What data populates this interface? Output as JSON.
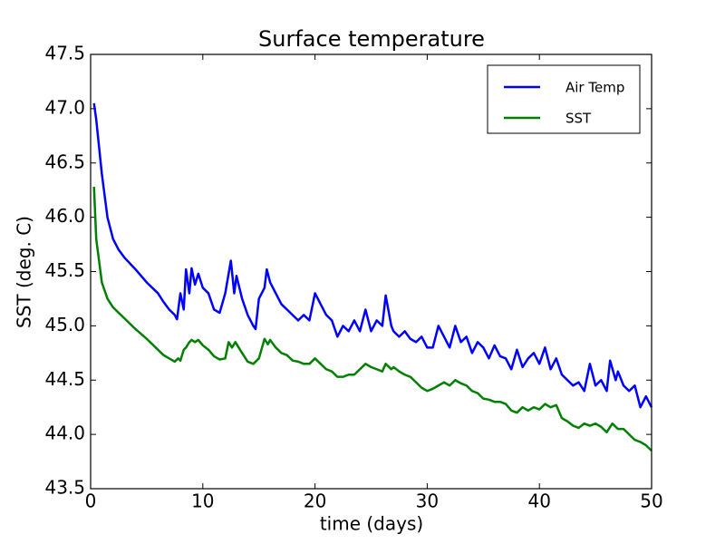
{
  "chart_data": {
    "type": "line",
    "title": "Surface temperature",
    "xlabel": "time (days)",
    "ylabel": "SST (deg. C)",
    "xlim": [
      0,
      50
    ],
    "xticks": [
      0,
      10,
      20,
      30,
      40,
      50
    ],
    "ylim": [
      43.5,
      47.5
    ],
    "yticks": [
      43.5,
      {
        "value": 44,
        "label": "44.0"
      },
      44.5,
      {
        "value": 45,
        "label": "45.0"
      },
      45.5,
      {
        "value": 46,
        "label": "46.0"
      },
      46.5,
      {
        "value": 47,
        "label": "47.0"
      },
      47.5
    ],
    "legend": "upper right",
    "grid": false,
    "series": [
      {
        "name": "Air Temp",
        "color": "#0000ff",
        "x": [
          0.3,
          0.5,
          1,
          1.5,
          2,
          2.5,
          3,
          4,
          5,
          6,
          6.5,
          7,
          7.5,
          7.7,
          8,
          8.3,
          8.5,
          8.8,
          9,
          9.3,
          9.6,
          10,
          10.5,
          11,
          11.5,
          12,
          12.5,
          12.8,
          13,
          13.5,
          14,
          14.5,
          14.7,
          15,
          15.5,
          15.7,
          16,
          16.5,
          17,
          17.5,
          18,
          18.5,
          19,
          19.5,
          20,
          20.5,
          21,
          21.5,
          22,
          22.5,
          23,
          23.5,
          24,
          24.5,
          25,
          25.5,
          26,
          26.3,
          26.8,
          27,
          27.5,
          28,
          28.5,
          29,
          29.5,
          30,
          30.5,
          31,
          31.5,
          32,
          32.5,
          33,
          33.5,
          34,
          34.5,
          35,
          35.5,
          36,
          36.5,
          37,
          37.5,
          38,
          38.5,
          39,
          39.5,
          40,
          40.5,
          41,
          41.5,
          42,
          42.5,
          43,
          43.5,
          44,
          44.5,
          45,
          45.5,
          46,
          46.3,
          46.8,
          47,
          47.5,
          48,
          48.5,
          49,
          49.5,
          50
        ],
        "values": [
          47.05,
          46.9,
          46.4,
          46.0,
          45.8,
          45.7,
          45.63,
          45.52,
          45.4,
          45.3,
          45.22,
          45.15,
          45.1,
          45.06,
          45.3,
          45.15,
          45.52,
          45.3,
          45.53,
          45.38,
          45.48,
          45.35,
          45.3,
          45.15,
          45.12,
          45.3,
          45.6,
          45.3,
          45.46,
          45.25,
          45.1,
          45.0,
          44.97,
          45.25,
          45.35,
          45.52,
          45.4,
          45.3,
          45.2,
          45.15,
          45.1,
          45.05,
          45.1,
          45.05,
          45.3,
          45.2,
          45.1,
          45.05,
          44.9,
          45.0,
          44.95,
          45.05,
          44.95,
          45.15,
          44.95,
          45.05,
          45.0,
          45.28,
          45.0,
          44.95,
          44.9,
          44.95,
          44.88,
          44.85,
          44.9,
          44.8,
          44.8,
          45.0,
          44.9,
          44.8,
          45.0,
          44.85,
          44.9,
          44.75,
          44.85,
          44.8,
          44.7,
          44.82,
          44.72,
          44.7,
          44.6,
          44.78,
          44.62,
          44.7,
          44.75,
          44.65,
          44.8,
          44.6,
          44.7,
          44.55,
          44.5,
          44.45,
          44.48,
          44.4,
          44.65,
          44.45,
          44.5,
          44.4,
          44.68,
          44.5,
          44.58,
          44.45,
          44.4,
          44.45,
          44.25,
          44.35,
          44.25
        ]
      },
      {
        "name": "SST",
        "color": "#008000",
        "x": [
          0.3,
          0.5,
          1,
          1.5,
          2,
          2.5,
          3,
          4,
          5,
          6,
          6.5,
          7,
          7.5,
          7.8,
          8,
          8.3,
          8.5,
          8.8,
          9,
          9.3,
          9.6,
          10,
          10.5,
          11,
          11.5,
          12,
          12.3,
          12.6,
          12.9,
          13.5,
          14,
          14.5,
          15,
          15.5,
          15.8,
          16,
          16.5,
          17,
          17.5,
          18,
          18.5,
          19,
          19.5,
          20,
          20.5,
          21,
          21.5,
          22,
          22.5,
          23,
          23.5,
          24,
          24.5,
          25,
          25.5,
          26,
          26.3,
          26.8,
          27,
          27.5,
          28,
          28.5,
          29,
          29.5,
          30,
          30.5,
          31,
          31.5,
          32,
          32.5,
          33,
          33.5,
          34,
          34.5,
          35,
          35.5,
          36,
          36.5,
          37,
          37.5,
          38,
          38.5,
          39,
          39.5,
          40,
          40.5,
          41,
          41.5,
          42,
          42.5,
          43,
          43.5,
          44,
          44.5,
          45,
          45.5,
          46,
          46.5,
          47,
          47.5,
          48,
          48.5,
          49,
          49.5,
          50
        ],
        "values": [
          46.28,
          45.8,
          45.4,
          45.25,
          45.17,
          45.12,
          45.07,
          44.97,
          44.88,
          44.78,
          44.73,
          44.7,
          44.67,
          44.7,
          44.68,
          44.78,
          44.8,
          44.85,
          44.87,
          44.85,
          44.87,
          44.82,
          44.78,
          44.72,
          44.69,
          44.7,
          44.85,
          44.8,
          44.85,
          44.75,
          44.67,
          44.65,
          44.7,
          44.88,
          44.83,
          44.87,
          44.8,
          44.75,
          44.73,
          44.68,
          44.67,
          44.65,
          44.65,
          44.7,
          44.65,
          44.6,
          44.58,
          44.53,
          44.53,
          44.55,
          44.55,
          44.6,
          44.65,
          44.62,
          44.6,
          44.58,
          44.65,
          44.6,
          44.62,
          44.58,
          44.55,
          44.53,
          44.48,
          44.43,
          44.4,
          44.42,
          44.45,
          44.48,
          44.45,
          44.5,
          44.47,
          44.45,
          44.4,
          44.38,
          44.33,
          44.32,
          44.3,
          44.3,
          44.28,
          44.22,
          44.2,
          44.25,
          44.22,
          44.25,
          44.23,
          44.28,
          44.25,
          44.27,
          44.15,
          44.12,
          44.08,
          44.06,
          44.1,
          44.08,
          44.1,
          44.07,
          44.02,
          44.1,
          44.05,
          44.05,
          44.0,
          43.95,
          43.93,
          43.9,
          43.85
        ]
      }
    ]
  }
}
